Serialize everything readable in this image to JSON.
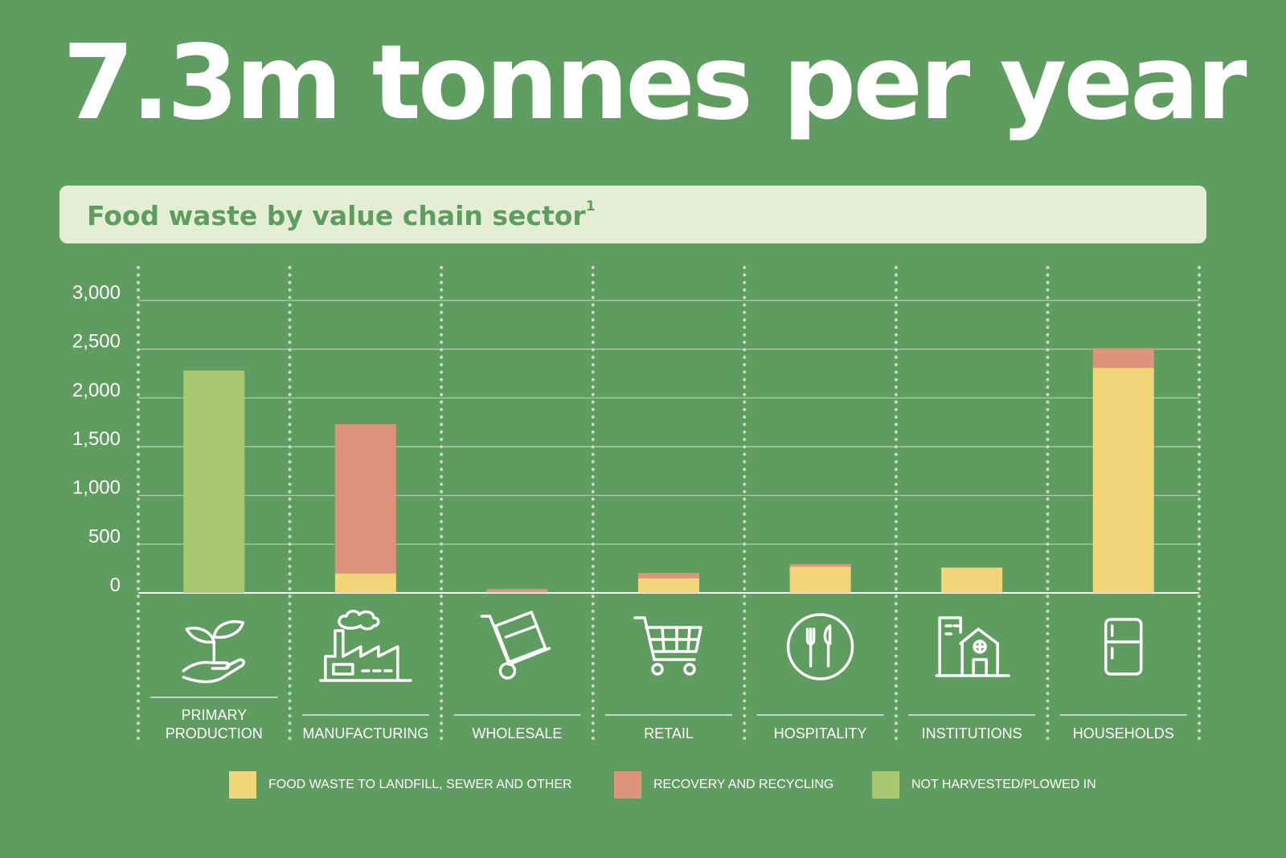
{
  "headline": "7.3m tonnes per year",
  "subtitle": {
    "text": "Food waste by value chain sector",
    "footnote": "1"
  },
  "colors": {
    "background": "#5e9c5f",
    "landfill": "#f2d578",
    "recovery": "#dd937d",
    "not_harvested": "#a9c971",
    "subtitle_bg": "#e3eed5",
    "dots": "#c7ddc0",
    "white": "#ffffff"
  },
  "chart_data": {
    "type": "bar",
    "stacked": true,
    "ylim": [
      0,
      3000
    ],
    "yticks": [
      0,
      500,
      1000,
      1500,
      2000,
      2500,
      3000
    ],
    "ytick_labels": [
      "0",
      "500",
      "1,000",
      "1,500",
      "2,000",
      "2,500",
      "3,000"
    ],
    "grid": true,
    "categories": [
      "PRIMARY PRODUCTION",
      "MANUFACTURING",
      "WHOLESALE",
      "RETAIL",
      "HOSPITALITY",
      "INSTITUTIONS",
      "HOUSEHOLDS"
    ],
    "category_labels": [
      [
        "PRIMARY",
        "PRODUCTION"
      ],
      [
        "MANUFACTURING"
      ],
      [
        "WHOLESALE"
      ],
      [
        "RETAIL"
      ],
      [
        "HOSPITALITY"
      ],
      [
        "INSTITUTIONS"
      ],
      [
        "HOUSEHOLDS"
      ]
    ],
    "category_icons": [
      "plant-in-hand-icon",
      "factory-icon",
      "hand-truck-icon",
      "shopping-cart-icon",
      "plate-fork-knife-icon",
      "hospital-building-icon",
      "refrigerator-icon"
    ],
    "series": [
      {
        "name": "FOOD WASTE TO LANDFILL, SEWER AND OTHER",
        "color_key": "landfill",
        "values": [
          0,
          200,
          10,
          150,
          270,
          260,
          2310
        ]
      },
      {
        "name": "RECOVERY AND RECYCLING",
        "color_key": "recovery",
        "values": [
          0,
          1530,
          30,
          55,
          25,
          0,
          200
        ]
      },
      {
        "name": "NOT HARVESTED/PLOWED IN",
        "color_key": "not_harvested",
        "values": [
          2280,
          0,
          0,
          0,
          0,
          0,
          0
        ]
      }
    ],
    "legend_position": "bottom"
  }
}
